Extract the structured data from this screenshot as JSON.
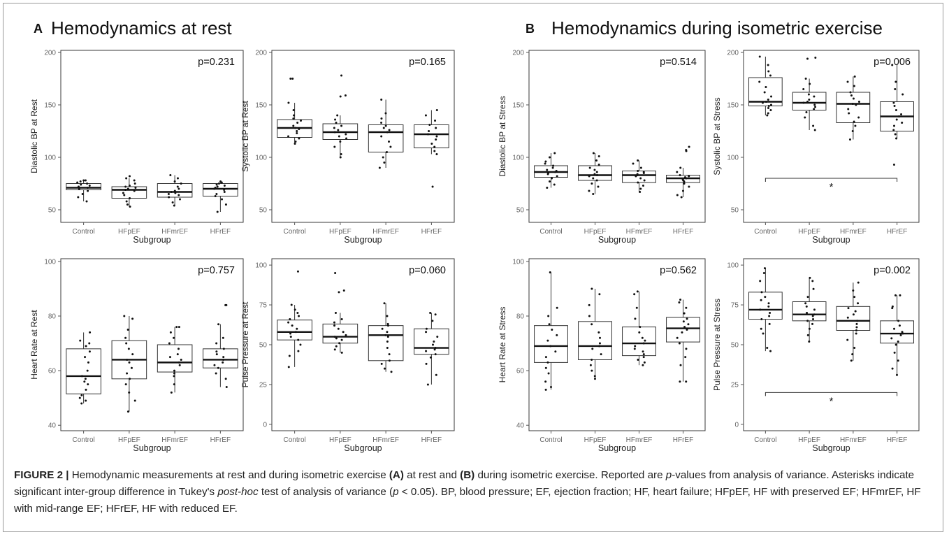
{
  "panels": {
    "a": {
      "letter": "A",
      "title": "Hemodynamics at rest"
    },
    "b": {
      "letter": "B",
      "title": "Hemodynamics during isometric exercise"
    }
  },
  "chart_data": [
    {
      "type": "box",
      "panel": "A",
      "ylabel": "Diastolic BP at Rest",
      "xlabel": "Subgroup",
      "categories": [
        "Control",
        "HFpEF",
        "HFmrEF",
        "HFrEF"
      ],
      "ylim": [
        38,
        202
      ],
      "yticks": [
        50,
        100,
        150,
        200
      ],
      "p_value": "p=0.231",
      "boxes": [
        {
          "q1": 69,
          "median": 71,
          "q3": 75,
          "lower": 58,
          "upper": 78
        },
        {
          "q1": 61,
          "median": 69,
          "q3": 72,
          "lower": 53,
          "upper": 80
        },
        {
          "q1": 62,
          "median": 67,
          "q3": 75,
          "lower": 54,
          "upper": 83
        },
        {
          "q1": 63,
          "median": 70,
          "q3": 75,
          "lower": 48,
          "upper": 77
        }
      ],
      "points": [
        [
          58,
          62,
          65,
          68,
          70,
          71,
          72,
          73,
          74,
          75,
          76,
          77,
          78,
          78
        ],
        [
          53,
          55,
          58,
          61,
          64,
          66,
          68,
          69,
          70,
          71,
          72,
          73,
          75,
          78,
          80,
          82
        ],
        [
          54,
          57,
          60,
          62,
          64,
          65,
          66,
          67,
          68,
          70,
          72,
          75,
          77,
          80,
          83
        ],
        [
          48,
          55,
          60,
          63,
          65,
          67,
          69,
          70,
          71,
          72,
          73,
          74,
          75,
          76,
          77
        ]
      ]
    },
    {
      "type": "box",
      "panel": "A",
      "ylabel": "Systolic BP at Rest",
      "xlabel": "Subgroup",
      "categories": [
        "Control",
        "HFpEF",
        "HFmrEF",
        "HFrEF"
      ],
      "ylim": [
        38,
        202
      ],
      "yticks": [
        50,
        100,
        150,
        200
      ],
      "p_value": "p=0.165",
      "boxes": [
        {
          "q1": 119,
          "median": 128,
          "q3": 136,
          "lower": 113,
          "upper": 152
        },
        {
          "q1": 117,
          "median": 124,
          "q3": 132,
          "lower": 100,
          "upper": 140
        },
        {
          "q1": 105,
          "median": 124,
          "q3": 131,
          "lower": 90,
          "upper": 155
        },
        {
          "q1": 109,
          "median": 122,
          "q3": 131,
          "lower": 103,
          "upper": 145
        }
      ],
      "points": [
        [
          113,
          115,
          118,
          120,
          123,
          125,
          127,
          128,
          130,
          133,
          135,
          137,
          140,
          145,
          152,
          175,
          175
        ],
        [
          100,
          103,
          110,
          115,
          118,
          120,
          122,
          124,
          126,
          128,
          130,
          133,
          136,
          140,
          158,
          159,
          178
        ],
        [
          90,
          95,
          100,
          105,
          110,
          115,
          120,
          124,
          126,
          128,
          130,
          133,
          137,
          142,
          155
        ],
        [
          72,
          103,
          106,
          110,
          113,
          117,
          120,
          122,
          125,
          128,
          131,
          135,
          140,
          145
        ]
      ]
    },
    {
      "type": "box",
      "panel": "A",
      "ylabel": "Heart Rate at Rest",
      "xlabel": "Subgroup",
      "categories": [
        "Control",
        "HFpEF",
        "HFmrEF",
        "HFrEF"
      ],
      "ylim": [
        38,
        101
      ],
      "yticks": [
        40,
        60,
        80,
        100
      ],
      "p_value": "p=0.757",
      "boxes": [
        {
          "q1": 51.5,
          "median": 58,
          "q3": 68,
          "lower": 48,
          "upper": 74
        },
        {
          "q1": 57,
          "median": 64,
          "q3": 71,
          "lower": 45,
          "upper": 80
        },
        {
          "q1": 59.5,
          "median": 63,
          "q3": 69.5,
          "lower": 52,
          "upper": 76
        },
        {
          "q1": 61,
          "median": 64,
          "q3": 68,
          "lower": 54,
          "upper": 77
        }
      ],
      "points": [
        [
          48,
          49,
          50,
          51,
          53,
          55,
          56,
          57,
          58,
          60,
          63,
          65,
          67,
          69,
          70,
          71,
          74
        ],
        [
          45,
          49,
          52,
          55,
          57,
          59,
          61,
          63,
          64,
          66,
          68,
          70,
          72,
          75,
          79,
          80
        ],
        [
          52,
          55,
          58,
          59,
          60,
          62,
          63,
          64,
          65,
          66,
          68,
          70,
          72,
          74,
          76,
          76
        ],
        [
          54,
          57,
          59,
          61,
          62,
          63,
          64,
          65,
          66,
          67,
          68,
          70,
          72,
          77,
          84,
          84
        ]
      ]
    },
    {
      "type": "box",
      "panel": "A",
      "ylabel": "Pulse Pressure at Rest",
      "xlabel": "Subgroup",
      "categories": [
        "Control",
        "HFpEF",
        "HFmrEF",
        "HFrEF"
      ],
      "ylim": [
        -4,
        104
      ],
      "yticks": [
        0,
        25,
        50,
        75,
        100
      ],
      "p_value": "p=0.060",
      "boxes": [
        {
          "q1": 53,
          "median": 58,
          "q3": 65.5,
          "lower": 36,
          "upper": 75
        },
        {
          "q1": 51,
          "median": 55,
          "q3": 63,
          "lower": 45,
          "upper": 70
        },
        {
          "q1": 40,
          "median": 56,
          "q3": 62,
          "lower": 33,
          "upper": 76
        },
        {
          "q1": 44,
          "median": 48,
          "q3": 60,
          "lower": 25,
          "upper": 70
        }
      ],
      "points": [
        [
          36,
          43,
          46,
          50,
          53,
          55,
          57,
          58,
          60,
          62,
          64,
          66,
          68,
          70,
          72,
          75,
          96
        ],
        [
          45,
          47,
          49,
          51,
          53,
          54,
          55,
          56,
          58,
          60,
          62,
          64,
          66,
          70,
          83,
          84,
          95
        ],
        [
          33,
          35,
          38,
          40,
          44,
          48,
          52,
          55,
          56,
          58,
          60,
          62,
          63,
          68,
          76
        ],
        [
          25,
          31,
          38,
          42,
          44,
          46,
          47,
          48,
          50,
          52,
          55,
          58,
          60,
          65,
          69,
          70
        ]
      ]
    },
    {
      "type": "box",
      "panel": "B",
      "ylabel": "Diastolic BP at Stress",
      "xlabel": "Subgroup",
      "categories": [
        "Control",
        "HFpEF",
        "HFmrEF",
        "HFrEF"
      ],
      "ylim": [
        38,
        202
      ],
      "yticks": [
        50,
        100,
        150,
        200
      ],
      "p_value": "p=0.514",
      "boxes": [
        {
          "q1": 81,
          "median": 86,
          "q3": 92,
          "lower": 71,
          "upper": 104
        },
        {
          "q1": 78,
          "median": 83,
          "q3": 92,
          "lower": 65,
          "upper": 104
        },
        {
          "q1": 76,
          "median": 83,
          "q3": 87,
          "lower": 67,
          "upper": 97
        },
        {
          "q1": 76,
          "median": 80,
          "q3": 83,
          "lower": 62,
          "upper": 90
        }
      ],
      "points": [
        [
          71,
          74,
          77,
          80,
          82,
          84,
          85,
          86,
          87,
          88,
          90,
          92,
          94,
          96,
          100,
          104
        ],
        [
          65,
          68,
          72,
          75,
          78,
          80,
          82,
          83,
          84,
          86,
          88,
          90,
          93,
          97,
          101,
          104
        ],
        [
          67,
          70,
          73,
          76,
          78,
          80,
          82,
          83,
          84,
          85,
          86,
          87,
          90,
          94,
          97
        ],
        [
          62,
          64,
          68,
          72,
          75,
          77,
          78,
          79,
          80,
          81,
          82,
          83,
          86,
          90,
          106,
          107,
          110
        ]
      ]
    },
    {
      "type": "box",
      "panel": "B",
      "ylabel": "Systolic BP at Stress",
      "xlabel": "Subgroup",
      "categories": [
        "Control",
        "HFpEF",
        "HFmrEF",
        "HFrEF"
      ],
      "ylim": [
        38,
        202
      ],
      "yticks": [
        50,
        100,
        150,
        200
      ],
      "p_value": "p=0.006",
      "significance": {
        "from": "Control",
        "to": "HFrEF",
        "y": 80,
        "label": "*"
      },
      "boxes": [
        {
          "q1": 149,
          "median": 153,
          "q3": 176,
          "lower": 140,
          "upper": 196
        },
        {
          "q1": 145,
          "median": 152,
          "q3": 162,
          "lower": 126,
          "upper": 175
        },
        {
          "q1": 133,
          "median": 151,
          "q3": 162,
          "lower": 117,
          "upper": 177
        },
        {
          "q1": 125,
          "median": 139,
          "q3": 153,
          "lower": 118,
          "upper": 188
        }
      ],
      "points": [
        [
          140,
          142,
          145,
          147,
          149,
          150,
          152,
          153,
          155,
          158,
          162,
          167,
          172,
          178,
          182,
          188,
          196
        ],
        [
          126,
          130,
          138,
          143,
          146,
          148,
          150,
          152,
          153,
          155,
          158,
          160,
          165,
          170,
          175,
          194,
          195
        ],
        [
          117,
          125,
          130,
          134,
          138,
          142,
          146,
          150,
          151,
          153,
          156,
          159,
          162,
          168,
          172,
          177
        ],
        [
          93,
          118,
          122,
          126,
          130,
          133,
          136,
          139,
          141,
          145,
          149,
          152,
          160,
          165,
          172,
          188
        ]
      ]
    },
    {
      "type": "box",
      "panel": "B",
      "ylabel": "Heart Rate at Stress",
      "xlabel": "Subgroup",
      "categories": [
        "Control",
        "HFpEF",
        "HFmrEF",
        "HFrEF"
      ],
      "ylim": [
        38,
        101
      ],
      "yticks": [
        40,
        60,
        80,
        100
      ],
      "p_value": "p=0.562",
      "boxes": [
        {
          "q1": 63,
          "median": 69,
          "q3": 76.5,
          "lower": 53,
          "upper": 96
        },
        {
          "q1": 64,
          "median": 69,
          "q3": 78,
          "lower": 57,
          "upper": 90
        },
        {
          "q1": 65.5,
          "median": 70,
          "q3": 76,
          "lower": 62,
          "upper": 89
        },
        {
          "q1": 70.5,
          "median": 75.5,
          "q3": 79.5,
          "lower": 56,
          "upper": 86
        }
      ],
      "points": [
        [
          53,
          54,
          56,
          59,
          61,
          63,
          65,
          67,
          69,
          71,
          73,
          75,
          77,
          80,
          83,
          96
        ],
        [
          57,
          58,
          60,
          62,
          64,
          66,
          68,
          69,
          70,
          72,
          74,
          77,
          80,
          84,
          88,
          90
        ],
        [
          62,
          63,
          64,
          65,
          66,
          67,
          68,
          69,
          70,
          71,
          72,
          74,
          76,
          79,
          83,
          88,
          89
        ],
        [
          56,
          56,
          62,
          65,
          68,
          70,
          72,
          74,
          75,
          76,
          77,
          78,
          79,
          81,
          83,
          85,
          86
        ]
      ]
    },
    {
      "type": "box",
      "panel": "B",
      "ylabel": "Pulse Pressure at Stress",
      "xlabel": "Subgroup",
      "categories": [
        "Control",
        "HFpEF",
        "HFmrEF",
        "HFrEF"
      ],
      "ylim": [
        -4,
        104
      ],
      "yticks": [
        0,
        25,
        50,
        75,
        100
      ],
      "p_value": "p=0.002",
      "significance": {
        "from": "Control",
        "to": "HFrEF",
        "y": 20,
        "label": "*"
      },
      "boxes": [
        {
          "q1": 66,
          "median": 72,
          "q3": 83,
          "lower": 46,
          "upper": 98
        },
        {
          "q1": 65,
          "median": 69,
          "q3": 77,
          "lower": 52,
          "upper": 92
        },
        {
          "q1": 59,
          "median": 65,
          "q3": 74,
          "lower": 40,
          "upper": 89
        },
        {
          "q1": 51,
          "median": 57,
          "q3": 65,
          "lower": 31,
          "upper": 81
        }
      ],
      "points": [
        [
          46,
          48,
          57,
          60,
          63,
          66,
          68,
          70,
          72,
          74,
          76,
          78,
          80,
          83,
          90,
          95,
          98
        ],
        [
          52,
          56,
          60,
          63,
          65,
          66,
          68,
          69,
          70,
          72,
          74,
          76,
          80,
          85,
          90,
          92
        ],
        [
          40,
          44,
          48,
          53,
          57,
          59,
          61,
          63,
          65,
          67,
          69,
          71,
          73,
          76,
          80,
          84,
          89
        ],
        [
          31,
          35,
          40,
          45,
          50,
          52,
          54,
          56,
          57,
          58,
          60,
          62,
          65,
          73,
          74,
          81,
          81
        ]
      ]
    }
  ],
  "caption": {
    "label": "FIGURE 2 |",
    "part1": " Hemodynamic measurements at rest and during isometric exercise ",
    "bold_a": "(A)",
    "part2": " at rest and ",
    "bold_b": "(B)",
    "part3": " during isometric exercise. Reported are ",
    "italic_p": "p",
    "part4": "-values from analysis of variance. Asterisks indicate significant inter-group difference in Tukey's ",
    "italic_posthoc": "post-hoc",
    "part5": " test of analysis of variance (",
    "italic_p2": "p",
    "part6": " < 0.05). BP, blood pressure; EF, ejection fraction; HF, heart failure; HFpEF, HF with preserved EF; HFmrEF, HF with mid-range EF; HFrEF, HF with reduced EF."
  }
}
